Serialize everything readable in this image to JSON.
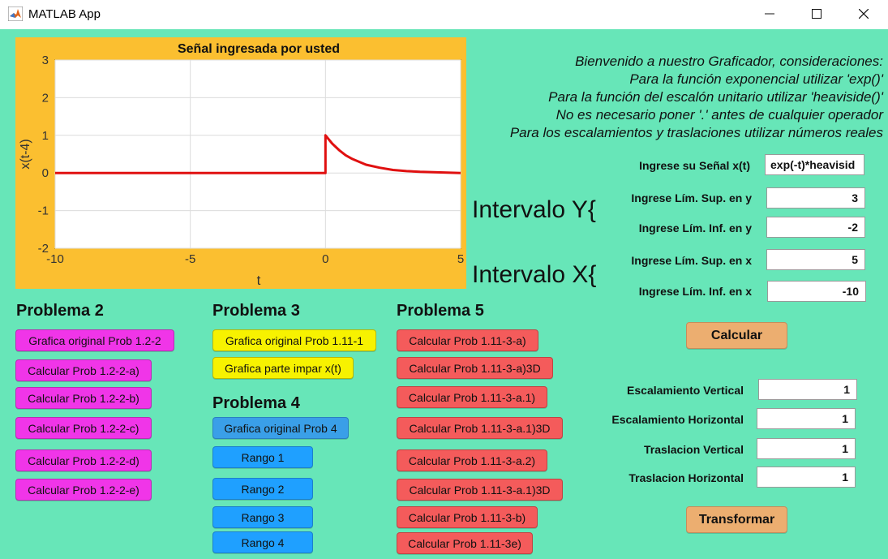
{
  "window": {
    "title": "MATLAB App"
  },
  "plot": {
    "title": "Señal ingresada por usted",
    "xlabel": "t",
    "ylabel": "x(t-4)"
  },
  "chart_data": {
    "type": "line",
    "title": "Señal ingresada por usted",
    "xlabel": "t",
    "ylabel": "x(t-4)",
    "xlim": [
      -10,
      5
    ],
    "ylim": [
      -2,
      3
    ],
    "xticks": [
      "-10",
      "-5",
      "0",
      "5"
    ],
    "yticks": [
      "3",
      "2",
      "1",
      "0",
      "-1",
      "-2"
    ],
    "grid": true,
    "series": [
      {
        "color": "#e01010",
        "x": [
          -10,
          0,
          0,
          0.25,
          0.5,
          0.75,
          1,
          1.5,
          2,
          2.5,
          3,
          3.5,
          4,
          4.5,
          5
        ],
        "y": [
          0,
          0,
          1,
          0.78,
          0.61,
          0.47,
          0.37,
          0.22,
          0.14,
          0.08,
          0.05,
          0.03,
          0.02,
          0.01,
          0.0
        ]
      }
    ]
  },
  "info": {
    "line1": "Bienvenido a nuestro Graficador, consideraciones:",
    "line2": "Para la función exponencial utilizar 'exp()'",
    "line3": "Para la función del escalón unitario utilizar 'heaviside()'",
    "line4": "No es necesario poner '.' antes de cualquier operador",
    "line5": "Para los escalamientos y traslaciones utilizar números reales"
  },
  "inputs": {
    "signal_label": "Ingrese su Señal x(t)",
    "signal_value": "exp(-t)*heavisid",
    "interval_y": "Intervalo Y{",
    "interval_x": "Intervalo X{",
    "y_sup_label": "Ingrese Lím. Sup. en y",
    "y_sup_value": "3",
    "y_inf_label": "Ingrese Lím. Inf. en y",
    "y_inf_value": "-2",
    "x_sup_label": "Ingrese Lím. Sup. en x",
    "x_sup_value": "5",
    "x_inf_label": "Ingrese Lím. Inf. en x",
    "x_inf_value": "-10",
    "calcular": "Calcular"
  },
  "transform": {
    "esc_v_label": "Escalamiento Vertical",
    "esc_v_value": "1",
    "esc_h_label": "Escalamiento Horizontal",
    "esc_h_value": "1",
    "tras_v_label": "Traslacion Vertical",
    "tras_v_value": "1",
    "tras_h_label": "Traslacion Horizontal",
    "tras_h_value": "1",
    "transformar": "Transformar"
  },
  "problema2": {
    "heading": "Problema 2",
    "b1": "Grafica original Prob 1.2-2",
    "b2": "Calcular Prob 1.2-2-a)",
    "b3": "Calcular Prob 1.2-2-b)",
    "b4": "Calcular Prob 1.2-2-c)",
    "b5": "Calcular Prob 1.2-2-d)",
    "b6": "Calcular Prob 1.2-2-e)"
  },
  "problema3": {
    "heading": "Problema 3",
    "b1": "Grafica original Prob 1.11-1",
    "b2": "Grafica parte impar x(t)"
  },
  "problema4": {
    "heading": "Problema 4",
    "b1": "Grafica original Prob 4",
    "b2": "Rango 1",
    "b3": "Rango 2",
    "b4": "Rango 3",
    "b5": "Rango 4"
  },
  "problema5": {
    "heading": "Problema 5",
    "b1": "Calcular Prob 1.11-3-a)",
    "b2": "Calcular Prob 1.11-3-a)3D",
    "b3": "Calcular Prob 1.11-3-a.1)",
    "b4": "Calcular Prob 1.11-3-a.1)3D",
    "b5": "Calcular Prob 1.11-3-a.2)",
    "b6": "Calcular Prob 1.11-3-a.1)3D",
    "b7": "Calcular Prob 1.11-3-b)",
    "b8": "Calcular Prob 1.11-3e)"
  }
}
